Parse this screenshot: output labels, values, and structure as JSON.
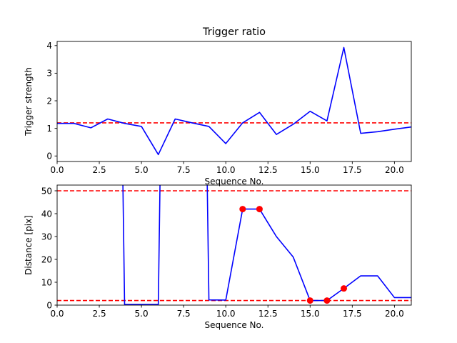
{
  "chart_data": [
    {
      "type": "line",
      "title": "Trigger ratio",
      "xlabel": "Sequence No.",
      "ylabel": "Trigger strength",
      "xlim": [
        0,
        21
      ],
      "ylim": [
        -0.2,
        4.15
      ],
      "xticks": [
        0,
        2.5,
        5,
        7.5,
        10,
        12.5,
        15,
        17.5,
        20
      ],
      "xtick_labels": [
        "0.0",
        "2.5",
        "5.0",
        "7.5",
        "10.0",
        "12.5",
        "15.0",
        "17.5",
        "20.0"
      ],
      "yticks": [
        0,
        1,
        2,
        3,
        4
      ],
      "ytick_labels": [
        "0",
        "1",
        "2",
        "3",
        "4"
      ],
      "grid": false,
      "series": [
        {
          "color": "#0000ff",
          "style": "solid",
          "x": [
            0,
            1,
            2,
            3,
            4,
            5,
            6,
            7,
            8,
            9,
            10,
            11,
            12,
            13,
            14,
            15,
            16,
            17,
            18,
            19,
            20,
            21
          ],
          "y": [
            1.18,
            1.18,
            1.02,
            1.34,
            1.18,
            1.07,
            0.05,
            1.34,
            1.2,
            1.07,
            0.45,
            1.2,
            1.58,
            0.78,
            1.15,
            1.62,
            1.27,
            3.93,
            0.82,
            0.88,
            0.97,
            1.05
          ]
        }
      ],
      "hlines": [
        {
          "y": 1.2,
          "color": "#ff0000",
          "style": "dashed"
        }
      ]
    },
    {
      "type": "line",
      "title": "",
      "xlabel": "Sequence No.",
      "ylabel": "Distance [pix]",
      "xlim": [
        0,
        21
      ],
      "ylim": [
        0,
        52.5
      ],
      "xticks": [
        0,
        2.5,
        5,
        7.5,
        10,
        12.5,
        15,
        17.5,
        20
      ],
      "xtick_labels": [
        "0.0",
        "2.5",
        "5.0",
        "7.5",
        "10.0",
        "12.5",
        "15.0",
        "17.5",
        "20.0"
      ],
      "yticks": [
        0,
        10,
        20,
        30,
        40,
        50
      ],
      "ytick_labels": [
        "0",
        "10",
        "20",
        "30",
        "40",
        "50"
      ],
      "grid": false,
      "series": [
        {
          "color": "#0000ff",
          "style": "solid",
          "x": [
            3.9,
            4,
            6,
            6.1,
            8.9,
            9,
            10,
            11,
            12,
            13,
            14,
            15,
            16,
            17,
            18,
            19,
            20,
            21
          ],
          "y": [
            53,
            0.3,
            0.3,
            53,
            53,
            2.3,
            2.2,
            42,
            42,
            30,
            21,
            2,
            2,
            7.3,
            12.8,
            12.8,
            3.3,
            3.3
          ]
        },
        {
          "color": "#ff0000",
          "style": "markers",
          "x": [
            11,
            12,
            15,
            16,
            17
          ],
          "y": [
            42,
            42,
            2,
            2,
            7.3
          ]
        }
      ],
      "hlines": [
        {
          "y": 50,
          "color": "#ff0000",
          "style": "dashed"
        },
        {
          "y": 2,
          "color": "#ff0000",
          "style": "dashed"
        }
      ]
    }
  ]
}
